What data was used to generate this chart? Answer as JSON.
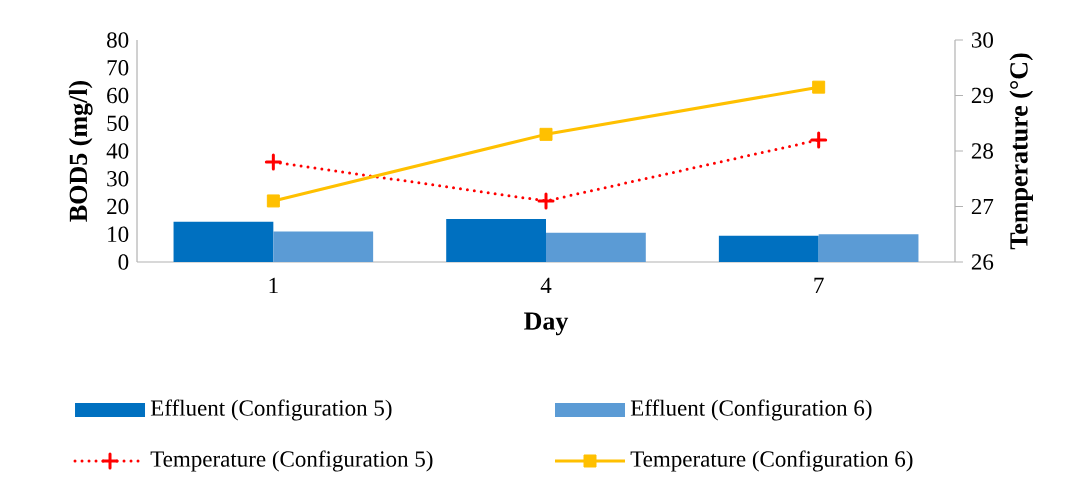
{
  "chart_data": {
    "type": "bar",
    "xlabel": "Day",
    "ylabel": "BOD5 (mg/l)",
    "y2label": "Temperature (°C)",
    "categories": [
      "1",
      "4",
      "7"
    ],
    "series": [
      {
        "name": "Effluent (Configuration 5)",
        "color": "#0070c0",
        "values": [
          14.5,
          15.5,
          9.5
        ]
      },
      {
        "name": "Effluent (Configuration 6)",
        "color": "#5b9bd5",
        "values": [
          11,
          10.5,
          10
        ]
      },
      {
        "name": "Temperature (Configuration 5)",
        "type": "line",
        "axis": "y2",
        "color": "#ff0000",
        "marker": "cross",
        "line_style": "dotted",
        "values": [
          27.8,
          27.1,
          28.2
        ]
      },
      {
        "name": "Temperature (Configuration 6)",
        "type": "line",
        "axis": "y2",
        "color": "#ffc000",
        "marker": "square",
        "line_style": "solid",
        "values": [
          27.1,
          28.3,
          29.15
        ]
      }
    ],
    "ylim": [
      0,
      80
    ],
    "yticks": [
      0,
      10,
      20,
      30,
      40,
      50,
      60,
      70,
      80
    ],
    "y2lim": [
      26,
      30
    ],
    "y2ticks": [
      26,
      27,
      28,
      29,
      30
    ],
    "legend": "bottom",
    "grid": false
  }
}
